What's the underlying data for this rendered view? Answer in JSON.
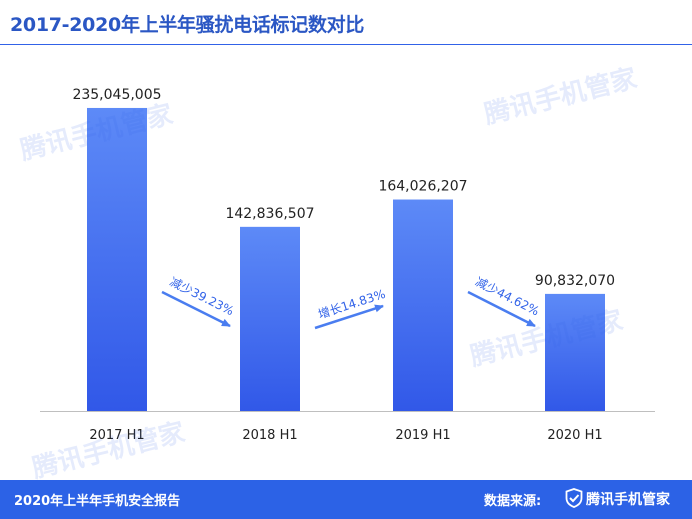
{
  "header": {
    "title": "2017-2020年上半年骚扰电话标记数对比"
  },
  "footer": {
    "report": "2020年上半年手机安全报告",
    "source_label": "数据来源:",
    "brand": "腾讯手机管家"
  },
  "watermark": {
    "text": "腾讯手机管家",
    "icon": "shield-check-icon"
  },
  "colors": {
    "title": "#2b57c4",
    "accent": "#3162e8",
    "bar_top": "#5d8af7",
    "bar_bottom": "#3158e8",
    "arrow": "#4a7df0",
    "footer_bg": "#2c62e6",
    "text": "#222222",
    "axis": "#bfbfbf"
  },
  "chart_data": {
    "type": "bar",
    "title": "2017-2020年上半年骚扰电话标记数对比",
    "xlabel": "",
    "ylabel": "",
    "categories": [
      "2017 H1",
      "2018 H1",
      "2019 H1",
      "2020 H1"
    ],
    "values": [
      235045005,
      142836507,
      164026207,
      90832070
    ],
    "value_labels": [
      "235,045,005",
      "142,836,507",
      "164,026,207",
      "90,832,070"
    ],
    "ylim": [
      0,
      280000000
    ],
    "grid": false,
    "legend": "none",
    "annotations": [
      {
        "from": "2017 H1",
        "to": "2018 H1",
        "text": "减少39.23%",
        "direction": "down"
      },
      {
        "from": "2018 H1",
        "to": "2019 H1",
        "text": "增长14.83%",
        "direction": "up"
      },
      {
        "from": "2019 H1",
        "to": "2020 H1",
        "text": "减少44.62%",
        "direction": "down"
      }
    ]
  }
}
